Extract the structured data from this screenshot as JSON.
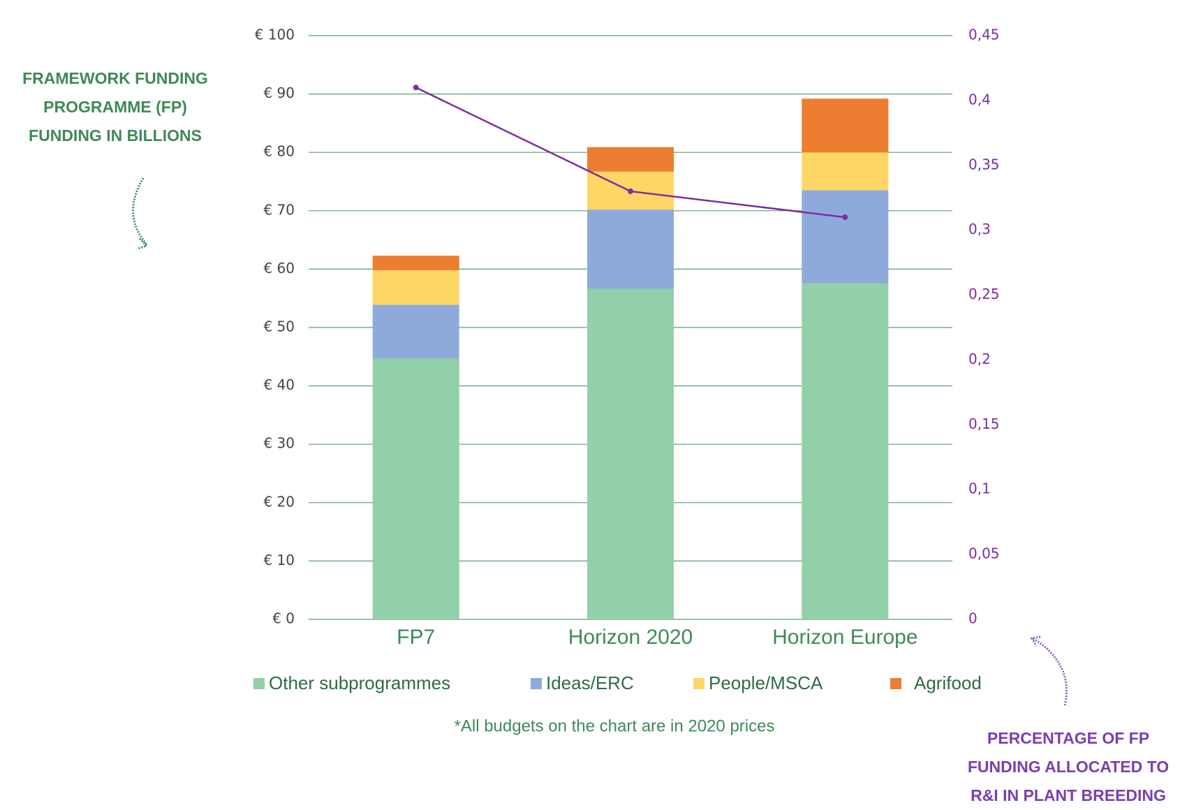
{
  "chart_data": {
    "type": "bar",
    "stacked": true,
    "ylabel": "FRAMEWORK FUNDING PROGRAMME (FP) FUNDING IN BILLIONS",
    "y2label": "PERCENTAGE OF FP FUNDING ALLOCATED TO R&I IN PLANT BREEDING",
    "footnote": "*All budgets on the chart are in 2020 prices",
    "categories": [
      "FP7",
      "Horizon 2020",
      "Horizon Europe"
    ],
    "series": [
      {
        "name": "Other subprogrammes",
        "color": "#91d0a8",
        "values": [
          44.7,
          56.6,
          57.6
        ]
      },
      {
        "name": "Ideas/ERC",
        "color": "#8eaadb",
        "values": [
          9.2,
          13.6,
          15.9
        ]
      },
      {
        "name": "People/MSCA",
        "color": "#fdd666",
        "values": [
          5.9,
          6.5,
          6.5
        ]
      },
      {
        "name": "Agrifood",
        "color": "#ed7d31",
        "values": [
          2.5,
          4.2,
          9.2
        ]
      },
      {
        "type": "line",
        "axis": "y2",
        "color": "#7b2fa0",
        "values": [
          0.41,
          0.33,
          0.31
        ]
      }
    ],
    "ylim": [
      0,
      100
    ],
    "yticks": [
      {
        "value": 0,
        "label": "€ 0"
      },
      {
        "value": 10,
        "label": "€ 10"
      },
      {
        "value": 20,
        "label": "€ 20"
      },
      {
        "value": 30,
        "label": "€ 30"
      },
      {
        "value": 40,
        "label": "€ 40"
      },
      {
        "value": 50,
        "label": "€ 50"
      },
      {
        "value": 60,
        "label": "€ 60"
      },
      {
        "value": 70,
        "label": "€ 70"
      },
      {
        "value": 80,
        "label": "€ 80"
      },
      {
        "value": 90,
        "label": "€ 90"
      },
      {
        "value": 100,
        "label": "€ 100"
      }
    ],
    "y2lim": [
      0,
      0.45
    ],
    "y2ticks": [
      0,
      {
        "value": 0.05,
        "label": "0,05"
      },
      {
        "value": 0.1,
        "label": "0,1"
      },
      {
        "value": 0.15,
        "label": "0,15"
      },
      {
        "value": 0.2,
        "label": "0,2"
      },
      {
        "value": 0.25,
        "label": "0,25"
      },
      {
        "value": 0.3,
        "label": "0,3"
      },
      {
        "value": 0.35,
        "label": "0,35"
      },
      {
        "value": 0.4,
        "label": "0,4"
      },
      {
        "value": 0.45,
        "label": "0,45"
      }
    ],
    "grid": true
  }
}
